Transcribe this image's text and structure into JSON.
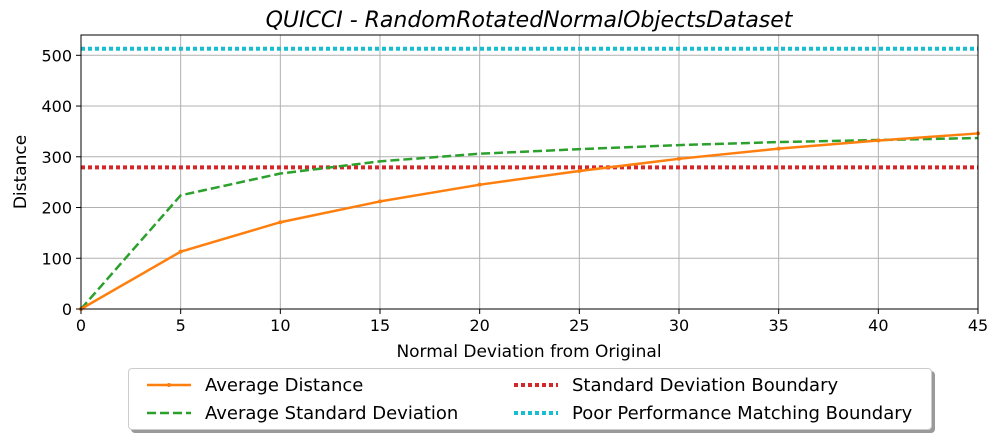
{
  "chart_data": {
    "type": "line",
    "title": "QUICCI - RandomRotatedNormalObjectsDataset",
    "xlabel": "Normal Deviation from Original",
    "ylabel": "Distance",
    "xlim": [
      0,
      45
    ],
    "ylim": [
      0,
      540
    ],
    "xticks": [
      0,
      5,
      10,
      15,
      20,
      25,
      30,
      35,
      40,
      45
    ],
    "yticks": [
      0,
      100,
      200,
      300,
      400,
      500
    ],
    "grid": true,
    "legend_position": "below",
    "x": [
      0,
      5,
      10,
      15,
      20,
      25,
      30,
      35,
      40,
      45
    ],
    "series": [
      {
        "name": "Average Distance",
        "values": [
          0,
          113,
          171,
          212,
          245,
          272,
          296,
          316,
          332,
          346
        ],
        "color": "#ff7f0e",
        "style": "solid-marker"
      },
      {
        "name": "Average Standard Deviation",
        "values": [
          0,
          224,
          267,
          291,
          306,
          315,
          323,
          329,
          333,
          337
        ],
        "color": "#2ca02c",
        "style": "dashed"
      },
      {
        "name": "Standard Deviation Boundary",
        "values": [
          279,
          279,
          279,
          279,
          279,
          279,
          279,
          279,
          279,
          279
        ],
        "color": "#d62728",
        "style": "dotted"
      },
      {
        "name": "Poor Performance Matching Boundary",
        "values": [
          513,
          513,
          513,
          513,
          513,
          513,
          513,
          513,
          513,
          513
        ],
        "color": "#17becf",
        "style": "dotted"
      }
    ]
  }
}
